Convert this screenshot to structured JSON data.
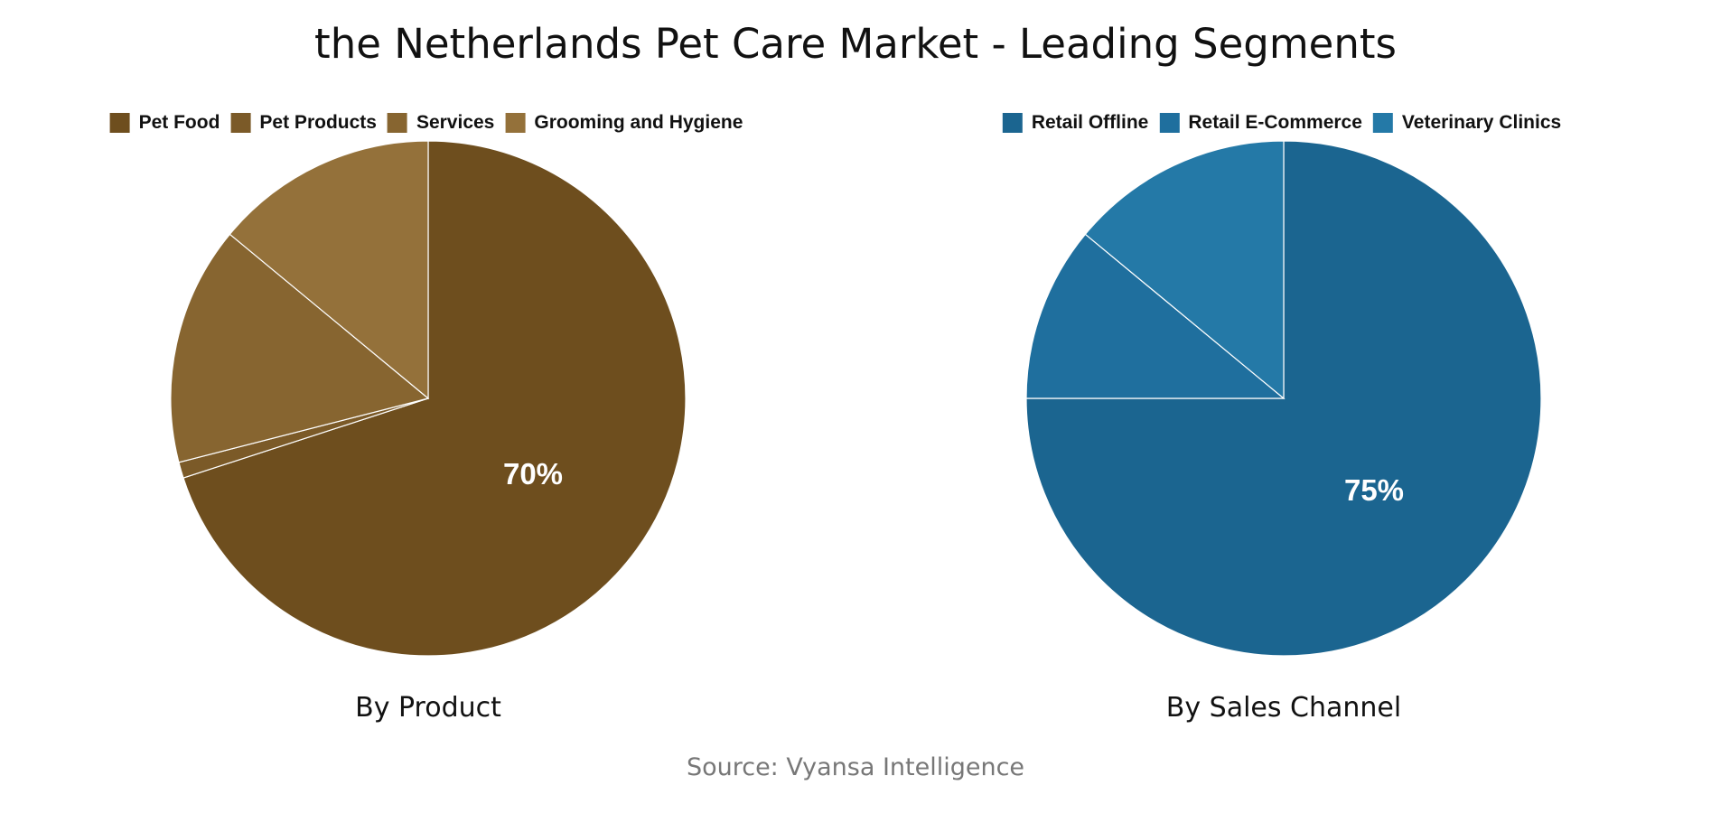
{
  "title": "the Netherlands Pet Care Market - Leading Segments",
  "source": "Source: Vyansa Intelligence",
  "chart_data": [
    {
      "type": "pie",
      "title": "By Product",
      "legend_position": "top",
      "categories": [
        "Pet Food",
        "Pet Products",
        "Services",
        "Grooming and Hygiene"
      ],
      "values": [
        70,
        1,
        15,
        14
      ],
      "colors": [
        "#6e4e1e",
        "#7b5a28",
        "#876530",
        "#94713a"
      ],
      "data_labels": [
        "70%",
        "",
        "",
        ""
      ]
    },
    {
      "type": "pie",
      "title": "By Sales Channel",
      "legend_position": "top",
      "categories": [
        "Retail Offline",
        "Retail E-Commerce",
        "Veterinary Clinics"
      ],
      "values": [
        75,
        11,
        14
      ],
      "colors": [
        "#1b6590",
        "#1f6f9e",
        "#2479a7"
      ],
      "data_labels": [
        "75%",
        "",
        ""
      ]
    }
  ]
}
